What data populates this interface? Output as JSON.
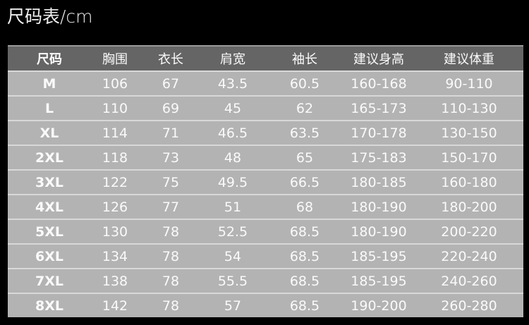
{
  "title": "尺码表/cm",
  "table": {
    "headers": [
      "尺码",
      "胸围",
      "衣长",
      "肩宽",
      "袖长",
      "建议身高",
      "建议体重"
    ],
    "rows": [
      [
        "M",
        "106",
        "67",
        "43.5",
        "60.5",
        "160-168",
        "90-110"
      ],
      [
        "L",
        "110",
        "69",
        "45",
        "62",
        "165-173",
        "110-130"
      ],
      [
        "XL",
        "114",
        "71",
        "46.5",
        "63.5",
        "170-178",
        "130-150"
      ],
      [
        "2XL",
        "118",
        "73",
        "48",
        "65",
        "175-183",
        "150-170"
      ],
      [
        "3XL",
        "122",
        "75",
        "49.5",
        "66.5",
        "180-185",
        "160-180"
      ],
      [
        "4XL",
        "126",
        "77",
        "51",
        "68",
        "180-190",
        "180-200"
      ],
      [
        "5XL",
        "130",
        "78",
        "52.5",
        "68.5",
        "180-190",
        "200-220"
      ],
      [
        "6XL",
        "134",
        "78",
        "54",
        "68.5",
        "185-195",
        "220-240"
      ],
      [
        "7XL",
        "138",
        "78",
        "55.5",
        "68.5",
        "185-195",
        "240-260"
      ],
      [
        "8XL",
        "142",
        "78",
        "57",
        "68.5",
        "190-200",
        "260-280"
      ]
    ]
  }
}
